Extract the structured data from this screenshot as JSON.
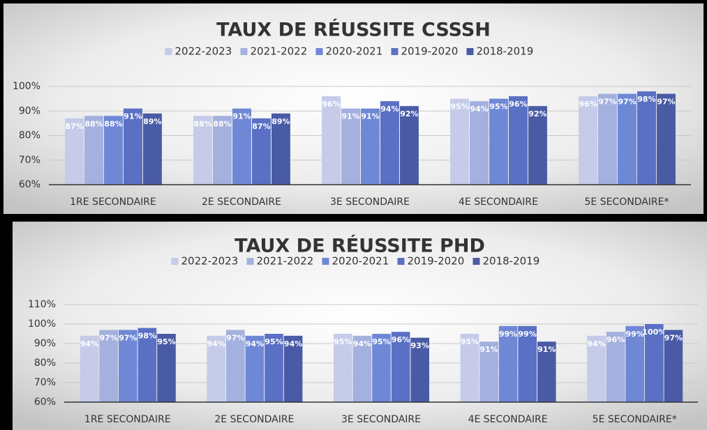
{
  "chart_data": [
    {
      "type": "bar",
      "title": "TAUX DE RÉUSSITE CSSSH",
      "categories": [
        "1RE SECONDAIRE",
        "2E SECONDAIRE",
        "3E SECONDAIRE",
        "4E SECONDAIRE",
        "5E SECONDAIRE*"
      ],
      "series": [
        {
          "name": "2022-2023",
          "color": "#c5cbe9",
          "values": [
            87,
            88,
            96,
            95,
            96
          ],
          "value_labels": [
            "87%",
            "88%",
            "96%",
            "95%",
            "96%"
          ]
        },
        {
          "name": "2021-2022",
          "color": "#a4b0de",
          "values": [
            88,
            88,
            91,
            94,
            97
          ],
          "value_labels": [
            "88%",
            "88%",
            "91%",
            "94%",
            "97%"
          ]
        },
        {
          "name": "2020-2021",
          "color": "#6f88d6",
          "values": [
            88,
            91,
            91,
            95,
            97
          ],
          "value_labels": [
            "88%",
            "91%",
            "91%",
            "95%",
            "97%"
          ]
        },
        {
          "name": "2019-2020",
          "color": "#5a70c4",
          "values": [
            91,
            87,
            94,
            96,
            98
          ],
          "value_labels": [
            "91%",
            "87%",
            "94%",
            "96%",
            "98%"
          ]
        },
        {
          "name": "2018-2019",
          "color": "#4a5ba6",
          "values": [
            89,
            89,
            92,
            92,
            97
          ],
          "value_labels": [
            "89%",
            "89%",
            "92%",
            "92%",
            "97%"
          ]
        }
      ],
      "ylim": [
        60,
        100
      ],
      "yticks": [
        {
          "value": 60,
          "label": "60%"
        },
        {
          "value": 70,
          "label": "70%"
        },
        {
          "value": 80,
          "label": "80%"
        },
        {
          "value": 90,
          "label": "90%"
        },
        {
          "value": 100,
          "label": "100%"
        }
      ],
      "grid": true,
      "legend": "top"
    },
    {
      "type": "bar",
      "title": "TAUX DE RÉUSSITE PHD",
      "categories": [
        "1RE SECONDAIRE",
        "2E SECONDAIRE",
        "3E SECONDAIRE",
        "4E SECONDAIRE",
        "5E SECONDAIRE*"
      ],
      "series": [
        {
          "name": "2022-2023",
          "color": "#c5cbe9",
          "values": [
            94,
            94,
            95,
            95,
            94
          ],
          "value_labels": [
            "94%",
            "94%",
            "95%",
            "95%",
            "94%"
          ]
        },
        {
          "name": "2021-2022",
          "color": "#a4b0de",
          "values": [
            97,
            97,
            94,
            91,
            96
          ],
          "value_labels": [
            "97%",
            "97%",
            "94%",
            "91%",
            "96%"
          ]
        },
        {
          "name": "2020-2021",
          "color": "#6f88d6",
          "values": [
            97,
            94,
            95,
            99,
            99
          ],
          "value_labels": [
            "97%",
            "94%",
            "95%",
            "99%",
            "99%"
          ]
        },
        {
          "name": "2019-2020",
          "color": "#5a70c4",
          "values": [
            98,
            95,
            96,
            99,
            100
          ],
          "value_labels": [
            "98%",
            "95%",
            "96%",
            "99%",
            "100%"
          ]
        },
        {
          "name": "2018-2019",
          "color": "#4a5ba6",
          "values": [
            95,
            94,
            93,
            91,
            97
          ],
          "value_labels": [
            "95%",
            "94%",
            "93%",
            "91%",
            "97%"
          ]
        }
      ],
      "ylim": [
        60,
        110
      ],
      "yticks": [
        {
          "value": 60,
          "label": "60%"
        },
        {
          "value": 70,
          "label": "70%"
        },
        {
          "value": 80,
          "label": "80%"
        },
        {
          "value": 90,
          "label": "90%"
        },
        {
          "value": 100,
          "label": "100%"
        },
        {
          "value": 110,
          "label": "110%"
        }
      ],
      "grid": true,
      "legend": "top"
    }
  ]
}
